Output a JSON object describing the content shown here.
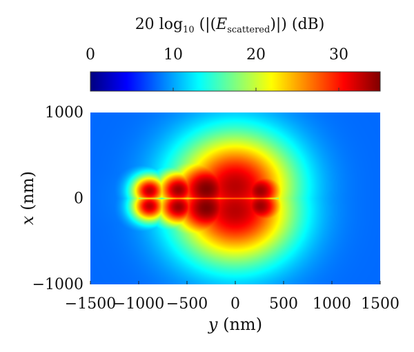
{
  "chart_data": {
    "type": "heatmap",
    "title": "",
    "colorbar": {
      "title_main": "20 log",
      "title_sub": "10",
      "title_open": " (|(",
      "title_var": "E",
      "title_var_sub": "scattered",
      "title_close": ")|) (dB)",
      "range": [
        0,
        35
      ],
      "ticks": [
        {
          "value": 0,
          "label": "0"
        },
        {
          "value": 10,
          "label": "10"
        },
        {
          "value": 20,
          "label": "20"
        },
        {
          "value": 30,
          "label": "30"
        }
      ],
      "colormap": "jet"
    },
    "xaxis": {
      "label_var": "y",
      "label_unit": " (nm)",
      "range": [
        -1500,
        1500
      ],
      "ticks": [
        {
          "value": -1500,
          "label": "−1500"
        },
        {
          "value": -1000,
          "label": "−1000"
        },
        {
          "value": -500,
          "label": "−500"
        },
        {
          "value": 0,
          "label": "0"
        },
        {
          "value": 500,
          "label": "500"
        },
        {
          "value": 1000,
          "label": "1000"
        },
        {
          "value": 1500,
          "label": "1500"
        }
      ]
    },
    "yaxis": {
      "label_var": "x",
      "label_unit": " (nm)",
      "range": [
        -1000,
        1000
      ],
      "ticks": [
        {
          "value": 1000,
          "label": "1000"
        },
        {
          "value": 0,
          "label": "0"
        },
        {
          "value": -1000,
          "label": "−1000"
        }
      ]
    },
    "hotspots": [
      {
        "y": -890,
        "x": 90,
        "db": 33,
        "r": 55
      },
      {
        "y": -890,
        "x": -90,
        "db": 33,
        "r": 55
      },
      {
        "y": -590,
        "x": 100,
        "db": 34,
        "r": 70
      },
      {
        "y": -590,
        "x": -100,
        "db": 34,
        "r": 70
      },
      {
        "y": -300,
        "x": 110,
        "db": 35,
        "r": 110
      },
      {
        "y": -300,
        "x": -110,
        "db": 35,
        "r": 110
      },
      {
        "y": 0,
        "x": 140,
        "db": 33,
        "r": 180
      },
      {
        "y": 0,
        "x": -140,
        "db": 33,
        "r": 180
      },
      {
        "y": 260,
        "x": 90,
        "db": 34,
        "r": 80
      },
      {
        "y": 260,
        "x": -90,
        "db": 34,
        "r": 80
      }
    ],
    "background_db": 8
  }
}
